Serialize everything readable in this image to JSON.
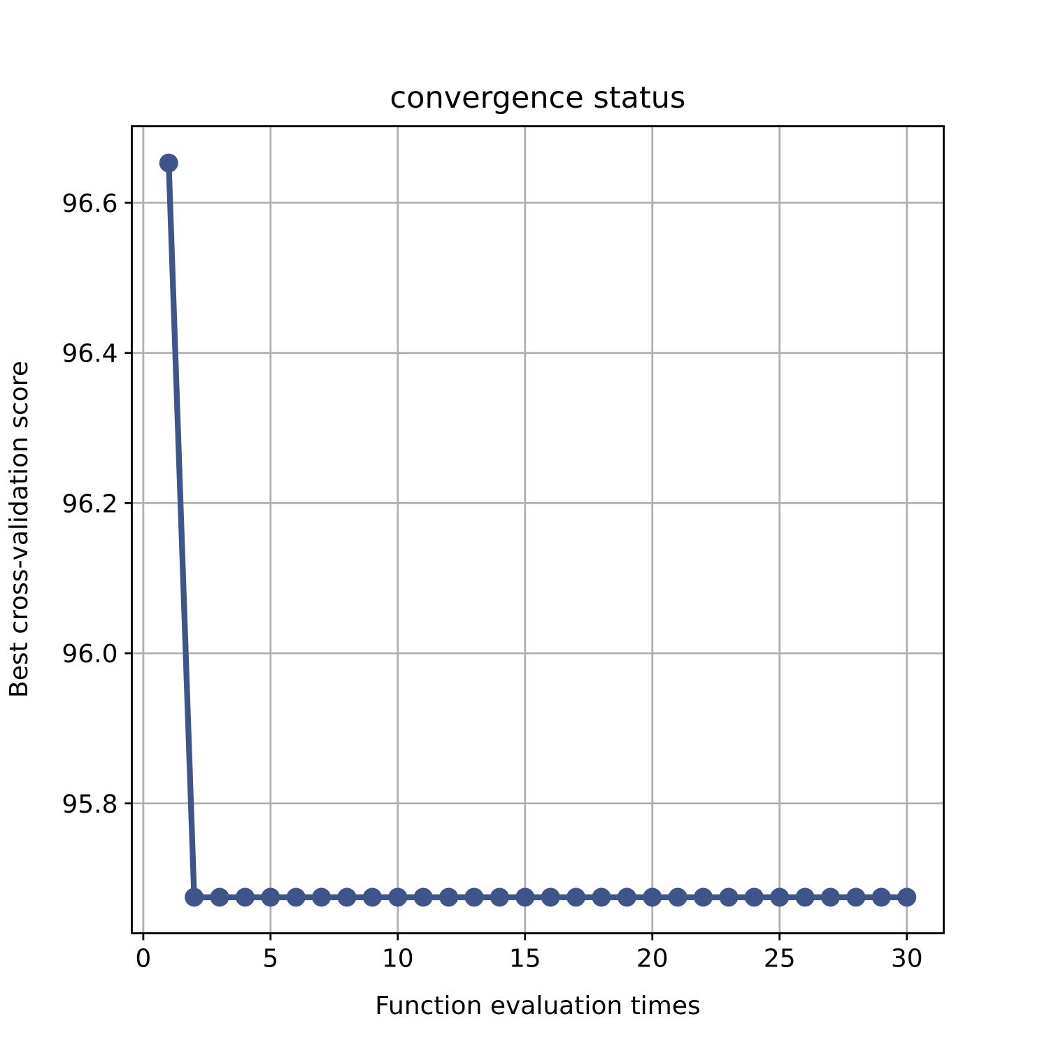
{
  "chart_data": {
    "type": "line",
    "title": "convergence status",
    "xlabel": "Function evaluation times",
    "ylabel": "Best cross-validation score",
    "x_ticks": [
      "0",
      "5",
      "10",
      "15",
      "20",
      "25",
      "30"
    ],
    "y_ticks": [
      "95.8",
      "96.0",
      "96.2",
      "96.4",
      "96.6"
    ],
    "x_tick_values": [
      0,
      5,
      10,
      15,
      20,
      25,
      30
    ],
    "y_tick_values": [
      95.8,
      96.0,
      96.2,
      96.4,
      96.6
    ],
    "xlim": [
      -0.45,
      31.45
    ],
    "ylim": [
      95.627,
      96.702
    ],
    "grid": true,
    "line_color": "#3f5489",
    "grid_color": "#b0b0b0",
    "series": [
      {
        "x": [
          1,
          2,
          3,
          4,
          5,
          6,
          7,
          8,
          9,
          10,
          11,
          12,
          13,
          14,
          15,
          16,
          17,
          18,
          19,
          20,
          21,
          22,
          23,
          24,
          25,
          26,
          27,
          28,
          29,
          30
        ],
        "y": [
          96.653,
          95.675,
          95.675,
          95.675,
          95.675,
          95.675,
          95.675,
          95.675,
          95.675,
          95.675,
          95.675,
          95.675,
          95.675,
          95.675,
          95.675,
          95.675,
          95.675,
          95.675,
          95.675,
          95.675,
          95.675,
          95.675,
          95.675,
          95.675,
          95.675,
          95.675,
          95.675,
          95.675,
          95.675,
          95.675
        ]
      }
    ]
  }
}
